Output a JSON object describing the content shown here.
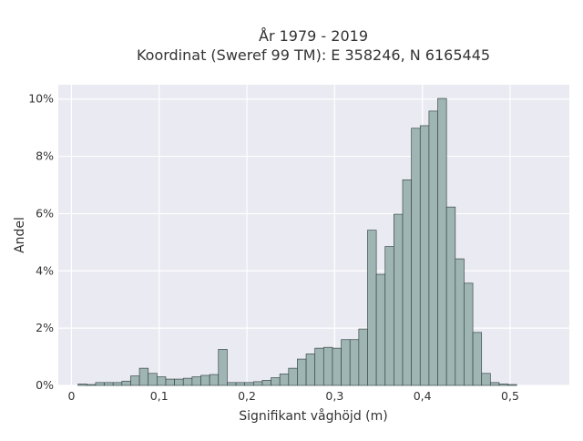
{
  "chart_data": {
    "type": "histogram",
    "title": [
      "År 1979 - 2019",
      "Koordinat (Sweref 99 TM): E 358246, N 6165445"
    ],
    "xlabel": "Signifikant våghöjd (m)",
    "ylabel": "Andel",
    "xlim": [
      -0.015,
      0.5675
    ],
    "ylim": [
      0,
      10.5
    ],
    "x_ticks": [
      0,
      0.1,
      0.2,
      0.3,
      0.4,
      0.5
    ],
    "x_tick_labels": [
      "0",
      "0,1",
      "0,2",
      "0,3",
      "0,4",
      "0,5"
    ],
    "y_ticks": [
      0,
      2,
      4,
      6,
      8,
      10
    ],
    "y_tick_labels": [
      "0%",
      "2%",
      "4%",
      "6%",
      "8%",
      "10%"
    ],
    "grid": true,
    "bin_start": 0.0075,
    "bin_width": 0.01,
    "values": [
      0.05,
      0.03,
      0.1,
      0.1,
      0.1,
      0.15,
      0.33,
      0.6,
      0.42,
      0.3,
      0.22,
      0.22,
      0.25,
      0.3,
      0.35,
      0.38,
      1.26,
      0.1,
      0.1,
      0.1,
      0.13,
      0.18,
      0.27,
      0.4,
      0.6,
      0.92,
      1.1,
      1.3,
      1.33,
      1.3,
      1.6,
      1.6,
      1.97,
      5.42,
      3.88,
      4.85,
      5.98,
      7.18,
      8.98,
      9.07,
      9.58,
      10.02,
      6.23,
      4.42,
      3.57,
      1.85,
      0.42,
      0.1,
      0.05,
      0.03
    ],
    "colors": {
      "bar_fill": "#9fb5b4",
      "bar_stroke": "#3a4a49",
      "plot_bg": "#eaeaf2",
      "grid": "#ffffff"
    }
  }
}
